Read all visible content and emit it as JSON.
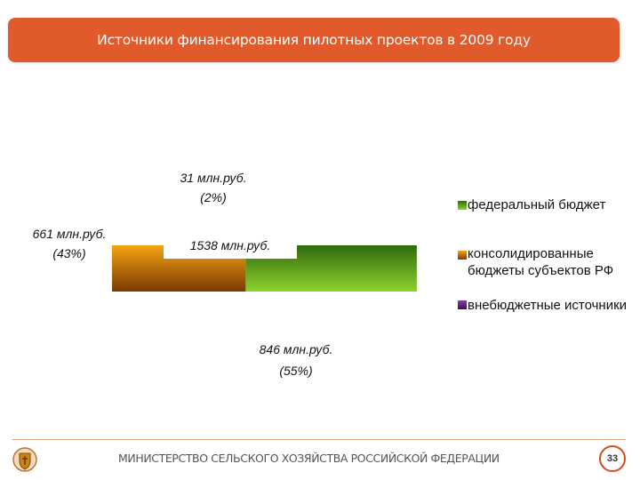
{
  "header": {
    "title": "Источники финансирования пилотных проектов в 2009 году"
  },
  "chart_data": {
    "type": "pie",
    "title": "Источники финансирования пилотных проектов в 2009 году",
    "categories": [
      "федеральный бюджет",
      "консолидированные бюджеты субъектов РФ",
      "внебюджетные источники"
    ],
    "values": [
      846,
      661,
      31
    ],
    "percent": [
      55,
      43,
      2
    ],
    "colors": [
      "#5d9a16",
      "#c06a0c",
      "#5a1f6e"
    ],
    "total": 1538,
    "data_labels": [
      {
        "line1": "846 млн.руб.",
        "line2": "(55%)"
      },
      {
        "line1": "661 млн.руб.",
        "line2": "(43%)"
      },
      {
        "line1": "31 млн.руб.",
        "line2": "(2%)"
      }
    ],
    "center_label": "1538 млн.руб.",
    "legend": {
      "position": "right",
      "items": [
        "федеральный бюджет",
        "консолидированные бюджеты субъектов РФ",
        "внебюджетные источники"
      ]
    }
  },
  "footer": {
    "ministry": "МИНИСТЕРСТВО СЕЛЬСКОГО ХОЗЯЙСТВА РОССИЙСКОЙ ФЕДЕРАЦИИ",
    "page_number": "33",
    "emblem_icon": "ministry-emblem-icon"
  }
}
